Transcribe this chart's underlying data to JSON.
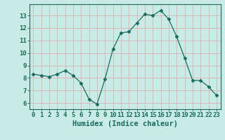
{
  "x": [
    0,
    1,
    2,
    3,
    4,
    5,
    6,
    7,
    8,
    9,
    10,
    11,
    12,
    13,
    14,
    15,
    16,
    17,
    18,
    19,
    20,
    21,
    22,
    23
  ],
  "y": [
    8.3,
    8.2,
    8.1,
    8.3,
    8.6,
    8.2,
    7.6,
    6.3,
    5.9,
    7.9,
    10.3,
    11.6,
    11.7,
    12.4,
    13.1,
    13.0,
    13.4,
    12.7,
    11.3,
    9.6,
    7.8,
    7.8,
    7.3,
    6.6
  ],
  "line_color": "#1a6b5e",
  "marker": "D",
  "marker_size": 2.5,
  "bg_color": "#c8ebe5",
  "grid_color": "#d9b8b8",
  "xlabel": "Humidex (Indice chaleur)",
  "xlim": [
    -0.5,
    23.5
  ],
  "ylim": [
    5.5,
    13.9
  ],
  "yticks": [
    6,
    7,
    8,
    9,
    10,
    11,
    12,
    13
  ],
  "xtick_labels": [
    "0",
    "1",
    "2",
    "3",
    "4",
    "5",
    "6",
    "7",
    "8",
    "9",
    "10",
    "11",
    "12",
    "13",
    "14",
    "15",
    "16",
    "17",
    "18",
    "19",
    "20",
    "21",
    "22",
    "23"
  ],
  "xlabel_fontsize": 7.5,
  "tick_fontsize": 6.5,
  "tick_color": "#1a6b5e",
  "axis_color": "#1a6b5e"
}
